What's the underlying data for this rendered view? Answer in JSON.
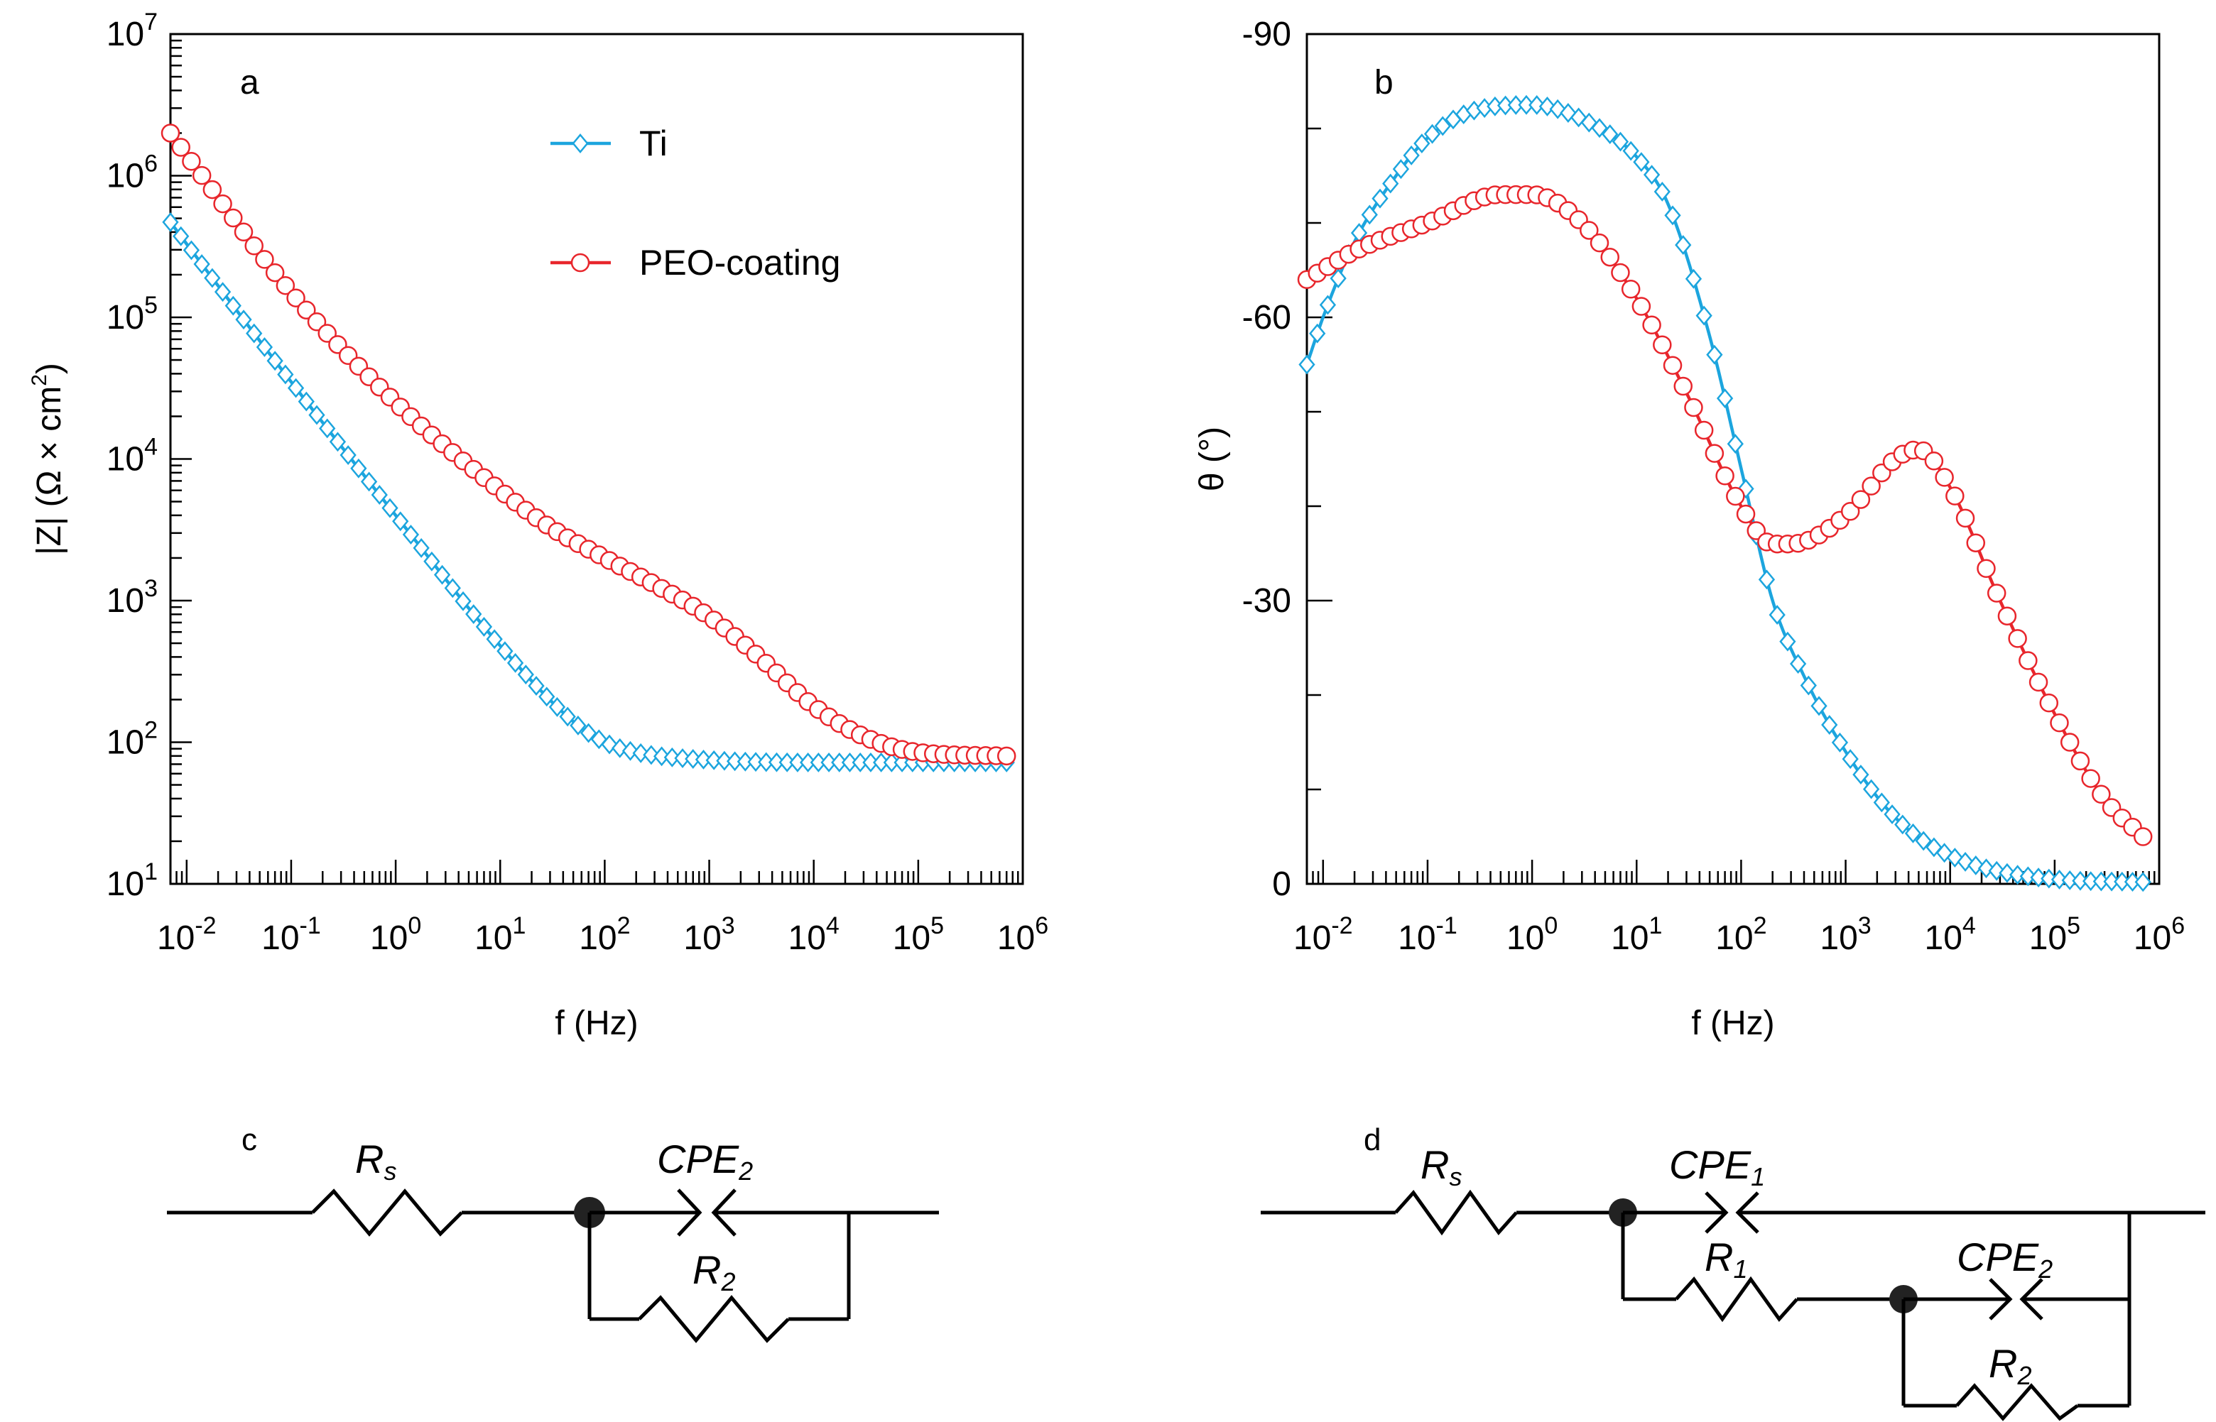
{
  "chart_data": [
    {
      "type": "line",
      "panel": "a",
      "xscale": "log",
      "yscale": "log",
      "xlabel": "f (Hz)",
      "ylabel": "|Z| (Ω × cm",
      "ylabel_sup": "2",
      "ylabel_close": ")",
      "xlim": [
        0.007,
        1000000
      ],
      "ylim": [
        10,
        10000000
      ],
      "x_tick_exponents": [
        "-2",
        "-1",
        "0",
        "1",
        "2",
        "3",
        "4",
        "5",
        "6"
      ],
      "y_tick_exponents": [
        "1",
        "2",
        "3",
        "4",
        "5",
        "6",
        "7"
      ],
      "tick_base": "10",
      "legend": {
        "position": "top-center",
        "entries": [
          "Ti",
          "PEO-coating"
        ]
      },
      "series": [
        {
          "name": "Ti",
          "color": "#1CA5DE",
          "marker": "diamond",
          "points": [
            [
              0.007,
              470000
            ],
            [
              0.01,
              330000
            ],
            [
              0.1,
              35000
            ],
            [
              1,
              4000
            ],
            [
              10,
              480
            ],
            [
              50,
              140
            ],
            [
              100,
              100
            ],
            [
              200,
              85
            ],
            [
              1000,
              75
            ],
            [
              10000,
              72
            ],
            [
              100000,
              72
            ],
            [
              700000,
              72
            ]
          ]
        },
        {
          "name": "PEO-coating",
          "color": "#E8262C",
          "marker": "circle",
          "points": [
            [
              0.007,
              2000000
            ],
            [
              0.01,
              1400000
            ],
            [
              0.1,
              150000
            ],
            [
              1,
              25000
            ],
            [
              10,
              6000
            ],
            [
              30,
              3300
            ],
            [
              100,
              2000
            ],
            [
              300,
              1300
            ],
            [
              1000,
              770
            ],
            [
              3000,
              400
            ],
            [
              10000,
              180
            ],
            [
              30000,
              110
            ],
            [
              100000,
              85
            ],
            [
              700000,
              80
            ]
          ]
        }
      ]
    },
    {
      "type": "line",
      "panel": "b",
      "xscale": "log",
      "yscale": "linear",
      "xlabel": "f (Hz)",
      "ylabel": "θ (°)",
      "xlim": [
        0.007,
        1000000
      ],
      "ylim": [
        0,
        -90
      ],
      "y_ticks": [
        0,
        -30,
        -60,
        -90
      ],
      "y_tick_labels": [
        "0",
        "-30",
        "-60",
        "-90"
      ],
      "x_tick_exponents": [
        "-2",
        "-1",
        "0",
        "1",
        "2",
        "3",
        "4",
        "5",
        "6"
      ],
      "tick_base": "10",
      "series": [
        {
          "name": "Ti",
          "color": "#1CA5DE",
          "marker": "diamond",
          "points": [
            [
              0.007,
              -55
            ],
            [
              0.01,
              -60
            ],
            [
              0.02,
              -68
            ],
            [
              0.05,
              -75
            ],
            [
              0.1,
              -79
            ],
            [
              0.3,
              -82
            ],
            [
              1,
              -82.5
            ],
            [
              3,
              -81
            ],
            [
              10,
              -77
            ],
            [
              20,
              -72
            ],
            [
              50,
              -58
            ],
            [
              100,
              -44
            ],
            [
              200,
              -30
            ],
            [
              400,
              -22
            ],
            [
              1000,
              -14
            ],
            [
              3000,
              -7
            ],
            [
              10000,
              -3
            ],
            [
              100000,
              -0.5
            ],
            [
              700000,
              -0.2
            ]
          ]
        },
        {
          "name": "PEO-coating",
          "color": "#E8262C",
          "marker": "circle",
          "points": [
            [
              0.007,
              -64
            ],
            [
              0.02,
              -67
            ],
            [
              0.1,
              -70
            ],
            [
              0.5,
              -73
            ],
            [
              1,
              -73
            ],
            [
              3,
              -70
            ],
            [
              10,
              -62
            ],
            [
              30,
              -52
            ],
            [
              100,
              -40
            ],
            [
              200,
              -36
            ],
            [
              300,
              -36
            ],
            [
              1000,
              -39
            ],
            [
              3000,
              -45
            ],
            [
              5000,
              -46
            ],
            [
              10000,
              -42
            ],
            [
              30000,
              -30
            ],
            [
              100000,
              -18
            ],
            [
              300000,
              -9
            ],
            [
              700000,
              -5
            ]
          ]
        }
      ]
    }
  ],
  "panel_labels": {
    "a": "a",
    "b": "b",
    "c": "c",
    "d": "d"
  },
  "circuits": {
    "c": {
      "r_s": "R",
      "r_s_sub": "s",
      "cpe2": "CPE",
      "cpe2_sub": "2",
      "r2": "R",
      "r2_sub": "2"
    },
    "d": {
      "r_s": "R",
      "r_s_sub": "s",
      "cpe1": "CPE",
      "cpe1_sub": "1",
      "r1": "R",
      "r1_sub": "1",
      "cpe2": "CPE",
      "cpe2_sub": "2",
      "r2": "R",
      "r2_sub": "2"
    }
  }
}
